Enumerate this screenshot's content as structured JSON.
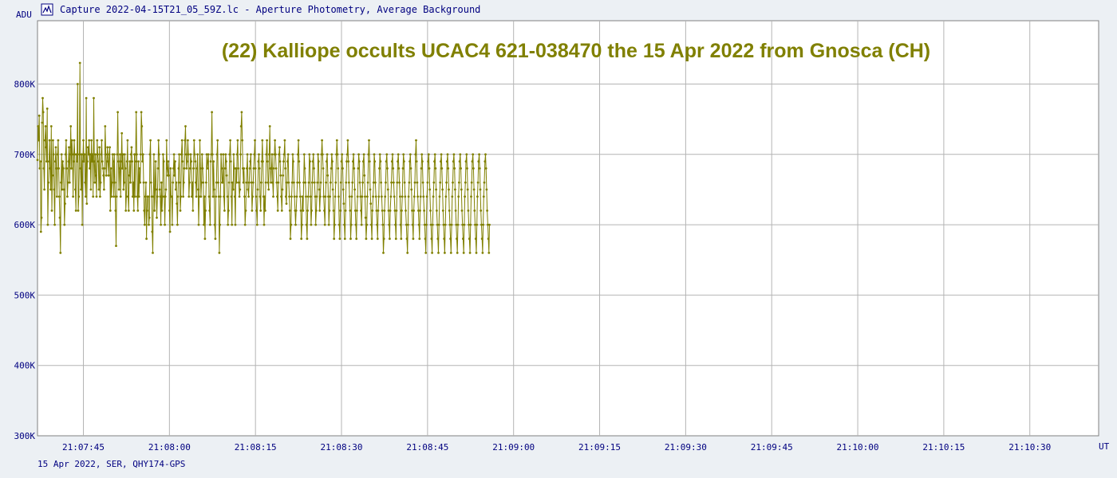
{
  "window": {
    "title": "Capture 2022-04-15T21_05_59Z.lc - Aperture Photometry, Average Background",
    "icon": "lightcurve-icon"
  },
  "footer": {
    "text": "15 Apr 2022, SER, QHY174-GPS"
  },
  "colors": {
    "background": "#ecf0f4",
    "plot_area": "#ffffff",
    "grid": "#b4b4b4",
    "series": "#808000",
    "axis_text": "#000080",
    "title_text": "#808000"
  },
  "chart_data": {
    "type": "line",
    "title": "(22) Kalliope occults UCAC4 621-038470 the 15 Apr 2022 from Gnosca (CH)",
    "xlabel": "UT",
    "ylabel": "ADU",
    "x_ticks": [
      "21:07:45",
      "21:08:00",
      "21:08:15",
      "21:08:30",
      "21:08:45",
      "21:09:00",
      "21:09:15",
      "21:09:30",
      "21:09:45",
      "21:10:00",
      "21:10:15",
      "21:10:30"
    ],
    "y_ticks": [
      "300K",
      "400K",
      "500K",
      "600K",
      "700K",
      "800K"
    ],
    "ylim": [
      300000,
      890000
    ],
    "xlim": [
      "21:07:37",
      "21:10:42"
    ],
    "grid": true,
    "marker": "small dot",
    "series": [
      {
        "time_start": "21:07:37",
        "time_step_s": 0.1,
        "values": [
          692,
          740,
          720,
          755,
          680,
          690,
          590,
          610,
          745,
          780,
          760,
          680,
          650,
          720,
          740,
          710,
          690,
          765,
          600,
          660,
          690,
          720,
          680,
          650,
          740,
          620,
          670,
          720,
          700,
          650,
          600,
          690,
          710,
          680,
          640,
          700,
          720,
          680,
          640,
          610,
          560,
          660,
          700,
          650,
          690,
          680,
          650,
          600,
          630,
          700,
          720,
          680,
          640,
          660,
          690,
          710,
          660,
          700,
          740,
          680,
          720,
          700,
          640,
          690,
          720,
          700,
          650,
          620,
          700,
          690,
          800,
          620,
          640,
          700,
          830,
          680,
          650,
          700,
          600,
          690,
          720,
          690,
          700,
          660,
          640,
          780,
          630,
          690,
          710,
          700,
          720,
          680,
          700,
          650,
          720,
          690,
          700,
          640,
          780,
          690,
          660,
          700,
          670,
          640,
          720,
          700,
          690,
          650,
          710,
          640,
          660,
          700,
          720,
          690,
          680,
          670,
          650,
          680,
          740,
          700,
          670,
          690,
          710,
          690,
          670,
          700,
          710,
          620,
          680,
          640,
          660,
          700,
          690,
          640,
          700,
          660,
          620,
          570,
          640,
          700,
          760,
          690,
          650,
          680,
          700,
          640,
          690,
          730,
          680,
          700,
          650,
          660,
          700,
          680,
          620,
          640,
          690,
          720,
          640,
          620,
          670,
          690,
          660,
          700,
          710,
          690,
          640,
          660,
          620,
          700,
          640,
          690,
          760,
          700,
          640,
          620,
          690,
          640,
          680,
          660,
          700,
          760,
          740,
          690,
          700,
          660,
          620,
          600,
          640,
          660,
          580,
          620,
          640,
          640,
          600,
          610,
          700,
          720,
          660,
          640,
          590,
          560,
          640,
          700,
          620,
          650,
          690,
          650,
          610,
          640,
          680,
          720,
          700,
          650,
          640,
          600,
          660,
          620,
          640,
          700,
          690,
          640,
          600,
          640,
          650,
          720,
          680,
          670,
          690,
          670,
          620,
          590,
          680,
          640,
          640,
          600,
          660,
          680,
          700,
          670,
          690,
          650,
          660,
          630,
          600,
          640,
          680,
          700,
          660,
          620,
          640,
          700,
          720,
          690,
          640,
          660,
          680,
          720,
          740,
          700,
          680,
          690,
          720,
          700,
          640,
          660,
          680,
          700,
          690,
          640,
          660,
          620,
          680,
          720,
          700,
          690,
          660,
          640,
          680,
          700,
          650,
          600,
          640,
          720,
          680,
          640,
          660,
          700,
          680,
          660,
          600,
          640,
          580,
          620,
          660,
          700,
          680,
          690,
          700,
          640,
          620,
          600,
          690,
          700,
          760,
          700,
          640,
          690,
          650,
          600,
          580,
          640,
          660,
          700,
          720,
          660,
          640,
          560,
          600,
          640,
          700,
          680,
          660,
          660,
          700,
          640,
          620,
          680,
          700,
          690,
          670,
          640,
          600,
          620,
          660,
          700,
          720,
          690,
          640,
          600,
          660,
          650,
          700,
          680,
          640,
          600,
          680,
          660,
          700,
          720,
          680,
          660,
          640,
          650,
          700,
          740,
          760,
          720,
          680,
          660,
          680,
          640,
          600,
          620,
          660,
          680,
          700,
          650,
          640,
          660,
          680,
          690,
          700,
          660,
          620,
          640,
          660,
          680,
          700,
          720,
          680,
          640,
          620,
          600,
          650,
          690,
          700,
          680,
          640,
          620,
          660,
          690,
          720,
          690,
          640,
          600,
          640,
          620,
          660,
          700,
          720,
          690,
          660,
          650,
          700,
          740,
          680,
          660,
          680,
          700,
          660,
          640,
          680,
          700,
          720,
          700,
          680,
          660,
          640,
          620,
          660,
          700,
          710,
          690,
          670,
          640,
          620,
          650,
          670,
          690,
          700,
          720,
          680,
          640,
          630,
          660,
          690,
          700,
          660,
          640,
          620,
          580,
          600,
          640,
          660,
          700,
          690,
          660,
          640,
          620,
          600,
          620,
          640,
          660,
          700,
          720,
          690,
          660,
          640,
          620,
          580,
          600,
          640,
          620,
          660,
          700,
          680,
          660,
          640,
          600,
          580,
          620,
          640,
          660,
          700,
          690,
          640,
          600,
          620,
          660,
          690,
          700,
          680,
          660,
          640,
          600,
          620,
          640,
          660,
          700,
          690,
          650,
          620,
          640,
          660,
          700,
          720,
          700,
          680,
          640,
          620,
          600,
          640,
          660,
          690,
          700,
          670,
          640,
          600,
          620,
          640,
          660,
          680,
          700,
          690,
          650,
          620,
          580,
          600,
          640,
          660,
          700,
          720,
          700,
          680,
          640,
          600,
          580,
          620,
          660,
          690,
          700,
          680,
          650,
          630,
          600,
          580,
          620,
          660,
          690,
          700,
          720,
          690,
          660,
          640,
          620,
          580,
          600,
          640,
          660,
          690,
          700,
          680,
          650,
          620,
          600,
          580,
          620,
          640,
          680,
          700,
          690,
          660,
          640,
          620,
          600,
          640,
          660,
          690,
          700,
          670,
          640,
          610,
          580,
          600,
          640,
          660,
          700,
          720,
          690,
          650,
          630,
          600,
          580,
          620,
          640,
          660,
          700,
          690,
          660,
          640,
          620,
          600,
          580,
          620,
          640,
          680,
          700,
          690,
          660,
          640,
          620,
          600,
          560,
          580,
          620,
          640,
          660,
          690,
          700,
          680,
          650,
          620,
          600,
          580,
          620,
          640,
          660,
          690,
          700,
          680,
          660,
          640,
          620,
          600,
          580,
          620,
          660,
          690,
          700,
          680,
          660,
          640,
          600,
          580,
          620,
          640,
          680,
          700,
          690,
          660,
          640,
          620,
          600,
          580,
          560,
          600,
          640,
          660,
          690,
          700,
          680,
          650,
          620,
          600,
          580,
          620,
          640,
          660,
          700,
          720,
          690,
          660,
          640,
          620,
          600,
          580,
          620,
          640,
          680,
          700,
          690,
          660,
          640,
          620,
          600,
          580,
          560,
          600,
          640,
          660,
          690,
          700,
          680,
          650,
          620,
          600,
          580,
          560,
          600,
          640,
          660,
          690,
          700,
          680,
          650,
          620,
          600,
          580,
          560,
          600,
          640,
          660,
          690,
          700,
          680,
          650,
          620,
          600,
          580,
          560,
          600,
          640,
          660,
          690,
          700,
          680,
          650,
          620,
          600,
          580,
          560,
          600,
          640,
          660,
          690,
          700,
          680,
          650,
          620,
          600,
          580,
          560,
          600,
          640,
          660,
          690,
          700,
          680,
          650,
          620,
          600,
          580,
          560,
          600,
          640,
          660,
          690,
          700,
          680,
          650,
          620,
          600,
          580,
          560,
          600,
          640,
          660,
          690,
          700,
          680,
          650,
          620,
          600,
          580,
          560,
          600,
          640,
          660,
          690,
          700,
          680,
          650,
          620,
          600,
          580,
          560,
          600,
          640,
          660,
          690,
          700,
          680,
          650,
          620,
          600,
          580,
          560,
          600
        ]
      }
    ]
  }
}
